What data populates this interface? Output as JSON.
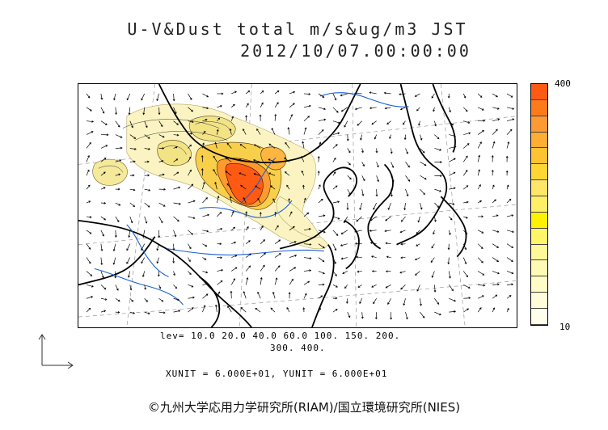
{
  "header": {
    "title": "U-V&Dust total m/s&ug/m3 JST",
    "timestamp": "2012/10/07.00:00:00"
  },
  "colorbar": {
    "max_label": "400",
    "min_label": "10",
    "colors": [
      "#ff5a14",
      "#ff7a1a",
      "#ff9933",
      "#ffad33",
      "#ffc233",
      "#ffd633",
      "#ffe666",
      "#ffef66",
      "#fff200",
      "#fff566",
      "#fff899",
      "#fffab3",
      "#fffcc6",
      "#fffdd9",
      "#fffeea"
    ]
  },
  "legend": {
    "levels_line1": "lev= 10.0 20.0 40.0 60.0 100. 150. 200.",
    "levels_line2": "300. 400.",
    "units": "XUNIT = 6.000E+01, YUNIT = 6.000E+01"
  },
  "footer": {
    "credit": "©九州大学応用力学研究所(RIAM)/国立環境研究所(NIES)"
  },
  "colors": {
    "coast": "#000000",
    "rivers": "#1a5fd6",
    "dust_light": "#fbf4c2",
    "dust_core": "#ff5a14"
  },
  "icons": [
    "up-arrow-icon",
    "right-arrow-icon"
  ]
}
